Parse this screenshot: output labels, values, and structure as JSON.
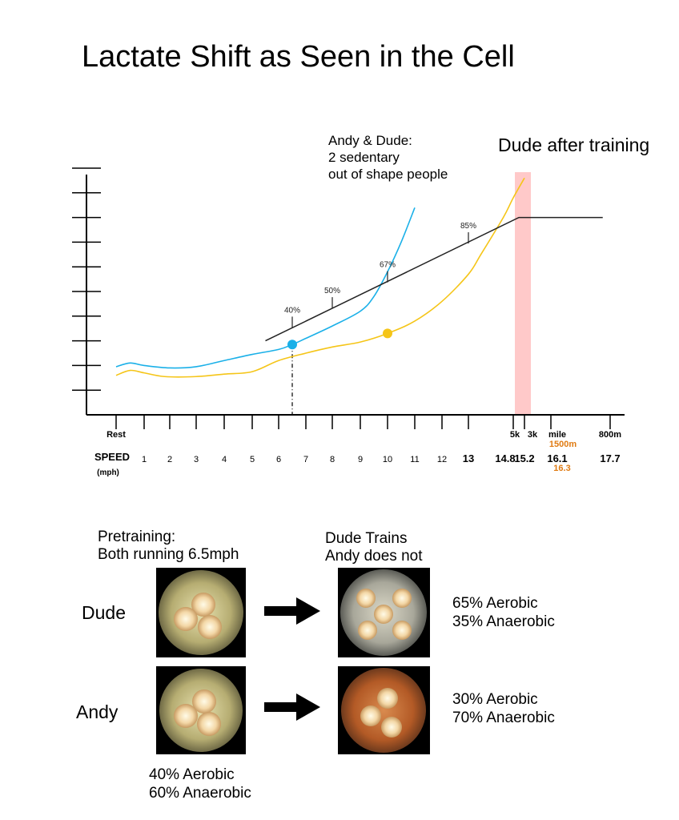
{
  "title": "Lactate Shift as Seen in the Cell",
  "annotations": {
    "sedentary_lines": [
      "Andy & Dude:",
      "2 sedentary",
      "out of shape people"
    ],
    "after_training": "Dude after training"
  },
  "chart_data": {
    "type": "line",
    "title": "Lactate Shift as Seen in the Cell",
    "xlabel": "SPEED",
    "xlabel_unit": "(mph)",
    "x_label_rows": {
      "events": [
        "Rest",
        "5k",
        "3k",
        "mile",
        "800m"
      ],
      "event_alt": "1500m",
      "speeds": [
        "1",
        "2",
        "3",
        "4",
        "5",
        "6",
        "7",
        "8",
        "9",
        "10",
        "11",
        "12",
        "13",
        "14.8",
        "15.2",
        "16.1",
        "17.7"
      ],
      "speed_alt": "16.3"
    },
    "series": [
      {
        "color": "#1ab0e8",
        "points": [
          [
            0,
            1.95
          ],
          [
            0.5,
            2.1
          ],
          [
            1,
            2.0
          ],
          [
            2,
            1.9
          ],
          [
            3,
            1.95
          ],
          [
            4,
            2.2
          ],
          [
            5,
            2.45
          ],
          [
            6,
            2.65
          ],
          [
            6.5,
            2.85
          ],
          [
            7,
            3.1
          ],
          [
            8,
            3.6
          ],
          [
            9,
            4.2
          ],
          [
            9.5,
            4.8
          ],
          [
            10,
            5.8
          ],
          [
            10.5,
            7.0
          ],
          [
            11,
            8.4
          ]
        ],
        "marker": {
          "x": 6.5,
          "y": 2.85
        }
      },
      {
        "color": "#f5c518",
        "points": [
          [
            0,
            1.6
          ],
          [
            0.5,
            1.8
          ],
          [
            1,
            1.7
          ],
          [
            1.8,
            1.55
          ],
          [
            3,
            1.55
          ],
          [
            4,
            1.65
          ],
          [
            5,
            1.75
          ],
          [
            6,
            2.2
          ],
          [
            7,
            2.5
          ],
          [
            8,
            2.75
          ],
          [
            9,
            2.95
          ],
          [
            10,
            3.3
          ],
          [
            11,
            3.8
          ],
          [
            12,
            4.6
          ],
          [
            13,
            5.7
          ],
          [
            13.5,
            6.5
          ],
          [
            14.4,
            8.0
          ],
          [
            14.8,
            8.8
          ],
          [
            15.2,
            9.6
          ]
        ],
        "marker": {
          "x": 10,
          "y": 3.3
        }
      },
      {
        "color": "#222222",
        "points": [
          [
            5.5,
            3.0
          ],
          [
            15,
            8.0
          ],
          [
            17.5,
            8.0
          ]
        ],
        "point_labels": [
          {
            "x": 6.5,
            "label": "40%"
          },
          {
            "x": 8,
            "label": "50%"
          },
          {
            "x": 10,
            "label": "67%"
          },
          {
            "x": 13,
            "label": "85%"
          }
        ]
      }
    ],
    "vertical_marker": {
      "x": 6.5,
      "style": "dash-dot"
    },
    "highlight_band": {
      "x": [
        14.8,
        15.2
      ],
      "color": "#ffc9c9"
    },
    "ylim": [
      0,
      10
    ],
    "yticks": 10,
    "grid": false,
    "legend": "none"
  },
  "candles": {
    "pretraining_title": [
      "Pretraining:",
      "Both running 6.5mph"
    ],
    "trained_title": [
      "Dude Trains",
      "Andy does not"
    ],
    "rows": [
      {
        "name": "Dude",
        "after_lines": [
          "65% Aerobic",
          "35% Anaerobic"
        ]
      },
      {
        "name": "Andy",
        "after_lines": [
          "30% Aerobic",
          "70% Anaerobic"
        ]
      }
    ],
    "before_lines": [
      "40% Aerobic",
      "60% Anaerobic"
    ]
  },
  "colors": {
    "blue": "#1ab0e8",
    "yellow": "#f5c518",
    "orange": "#e07b12",
    "band": "#ffc9c9",
    "axis": "#000000"
  }
}
